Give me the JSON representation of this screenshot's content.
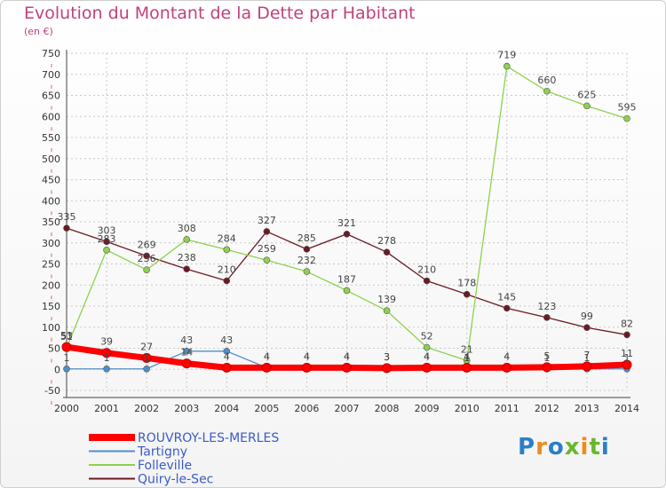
{
  "title": "Evolution du Montant de la Dette par Habitant",
  "subtitle": "(en €)",
  "logo": {
    "text": "Proxiti",
    "colors": [
      "#2a7fc8",
      "#f08a1c",
      "#2a7fc8",
      "#67b82e",
      "#f08a1c",
      "#67b82e"
    ]
  },
  "chart_data": {
    "type": "line",
    "x": [
      "2000",
      "2001",
      "2002",
      "2003",
      "2004",
      "2005",
      "2006",
      "2007",
      "2008",
      "2009",
      "2010",
      "2011",
      "2012",
      "2013",
      "2014"
    ],
    "ylim": [
      -50,
      750
    ],
    "yticks": [
      -50,
      0,
      50,
      100,
      150,
      200,
      250,
      300,
      350,
      400,
      450,
      500,
      550,
      600,
      650,
      700,
      750
    ],
    "grid": true,
    "legend_position": "bottom-left",
    "series": [
      {
        "name": "Quiry-le-Sec",
        "color": "#6b1a24",
        "values": [
          335,
          303,
          269,
          238,
          210,
          327,
          285,
          321,
          278,
          210,
          178,
          145,
          123,
          99,
          82
        ],
        "labels": [
          "335",
          "303",
          "269",
          "238",
          "210",
          "327",
          "285",
          "321",
          "278",
          "210",
          "178",
          "145",
          "123",
          "99",
          "82"
        ]
      },
      {
        "name": "Folleville",
        "color": "#8ed14f",
        "values": [
          51,
          283,
          236,
          308,
          284,
          259,
          232,
          187,
          139,
          52,
          21,
          719,
          660,
          625,
          595
        ],
        "labels": [
          "51",
          "283",
          "236",
          "308",
          "284",
          "259",
          "232",
          "187",
          "139",
          "52",
          "21",
          "719",
          "660",
          "625",
          "595"
        ]
      },
      {
        "name": "Tartigny",
        "color": "#4f8fc7",
        "values": [
          1,
          1,
          1,
          43,
          43,
          4,
          4,
          4,
          3,
          4,
          1,
          4,
          1,
          1,
          1
        ],
        "labels": [
          "1",
          "1",
          "1",
          "43",
          "43",
          "4",
          "4",
          "4",
          "3",
          "4",
          "1",
          "4",
          "1",
          "1",
          "1"
        ]
      },
      {
        "name": "ROUVROY-LES-MERLES",
        "color": "#ff0000",
        "values": [
          53,
          39,
          27,
          14,
          4,
          4,
          4,
          4,
          3,
          4,
          4,
          4,
          5,
          7,
          11
        ],
        "labels": [
          "53",
          "39",
          "27",
          "14",
          "4",
          "4",
          "4",
          "4",
          "3",
          "4",
          "4",
          "4",
          "5",
          "7",
          "11"
        ]
      }
    ],
    "legend_order": [
      "ROUVROY-LES-MERLES",
      "Tartigny",
      "Folleville",
      "Quiry-le-Sec"
    ]
  }
}
